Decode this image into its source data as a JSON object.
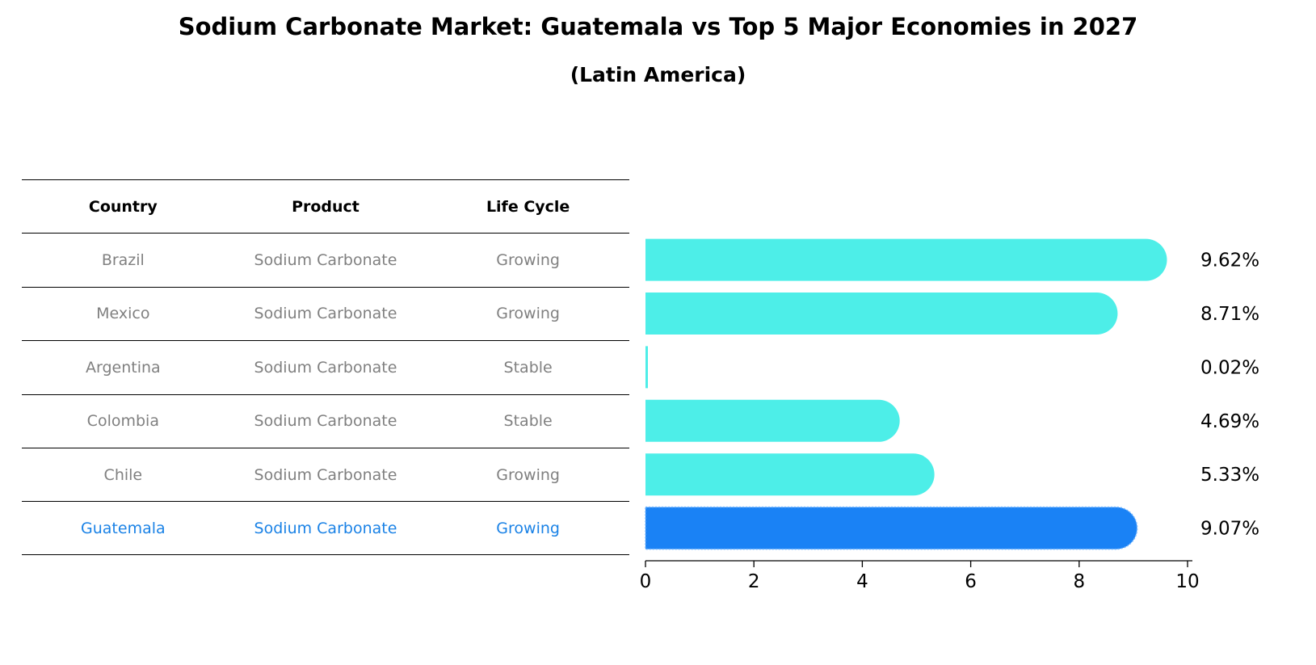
{
  "title": "Sodium Carbonate Market: Guatemala vs Top 5 Major Economies in 2027",
  "subtitle": "(Latin America)",
  "table": {
    "headers": [
      "Country",
      "Product",
      "Life Cycle"
    ],
    "rows": [
      {
        "country": "Brazil",
        "product": "Sodium Carbonate",
        "life_cycle": "Growing"
      },
      {
        "country": "Mexico",
        "product": "Sodium Carbonate",
        "life_cycle": "Growing"
      },
      {
        "country": "Argentina",
        "product": "Sodium Carbonate",
        "life_cycle": "Stable"
      },
      {
        "country": "Colombia",
        "product": "Sodium Carbonate",
        "life_cycle": "Stable"
      },
      {
        "country": "Chile",
        "product": "Sodium Carbonate",
        "life_cycle": "Growing"
      },
      {
        "country": "Guatemala",
        "product": "Sodium Carbonate",
        "life_cycle": "Growing"
      }
    ]
  },
  "colors": {
    "bar": "#4deee8",
    "highlight_bar": "#1a82f5",
    "highlight_text": "#1a82e6",
    "row_text": "#808080"
  },
  "chart_data": {
    "type": "bar",
    "orientation": "horizontal",
    "categories": [
      "Brazil",
      "Mexico",
      "Argentina",
      "Colombia",
      "Chile",
      "Guatemala"
    ],
    "values": [
      9.62,
      8.71,
      0.02,
      4.69,
      5.33,
      9.07
    ],
    "value_labels": [
      "9.62%",
      "8.71%",
      "0.02%",
      "4.69%",
      "5.33%",
      "9.07%"
    ],
    "highlight": "Guatemala",
    "xlim": [
      0,
      10
    ],
    "xticks": [
      0,
      2,
      4,
      6,
      8,
      10
    ],
    "xlabel": "",
    "ylabel": ""
  }
}
